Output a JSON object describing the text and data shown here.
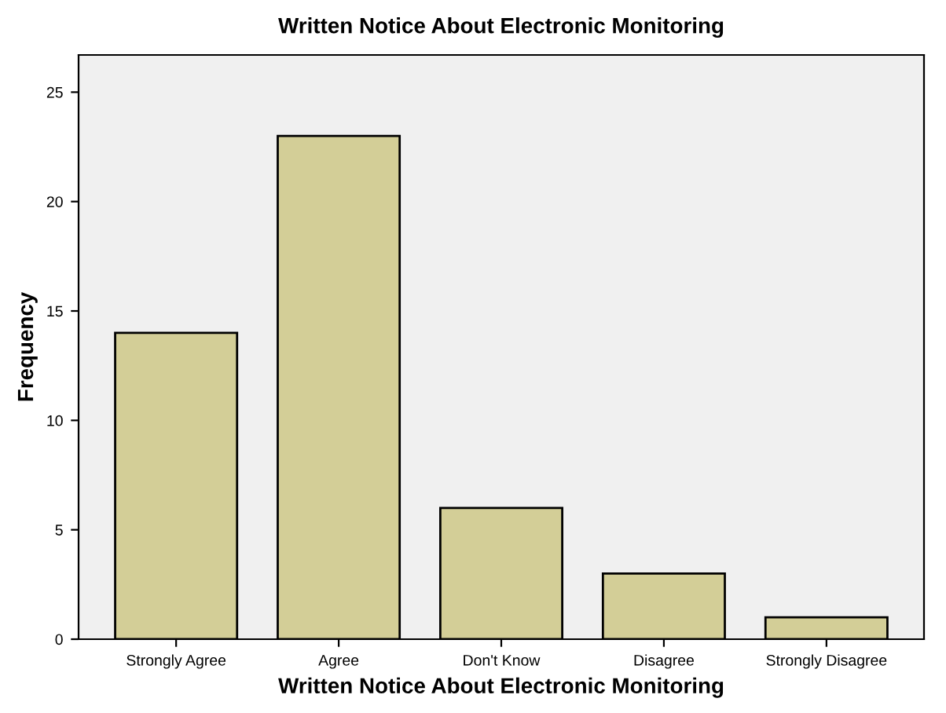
{
  "chart_data": {
    "type": "bar",
    "title": "Written Notice About Electronic Monitoring",
    "xlabel": "Written Notice About Electronic Monitoring",
    "ylabel": "Frequency",
    "categories": [
      "Strongly Agree",
      "Agree",
      "Don't Know",
      "Disagree",
      "Strongly Disagree"
    ],
    "values": [
      14,
      23,
      6,
      3,
      1
    ],
    "color": "#d3ce97",
    "ylim": [
      0,
      26.7
    ],
    "yticks": [
      0,
      5,
      10,
      15,
      20,
      25
    ],
    "grid": false
  }
}
